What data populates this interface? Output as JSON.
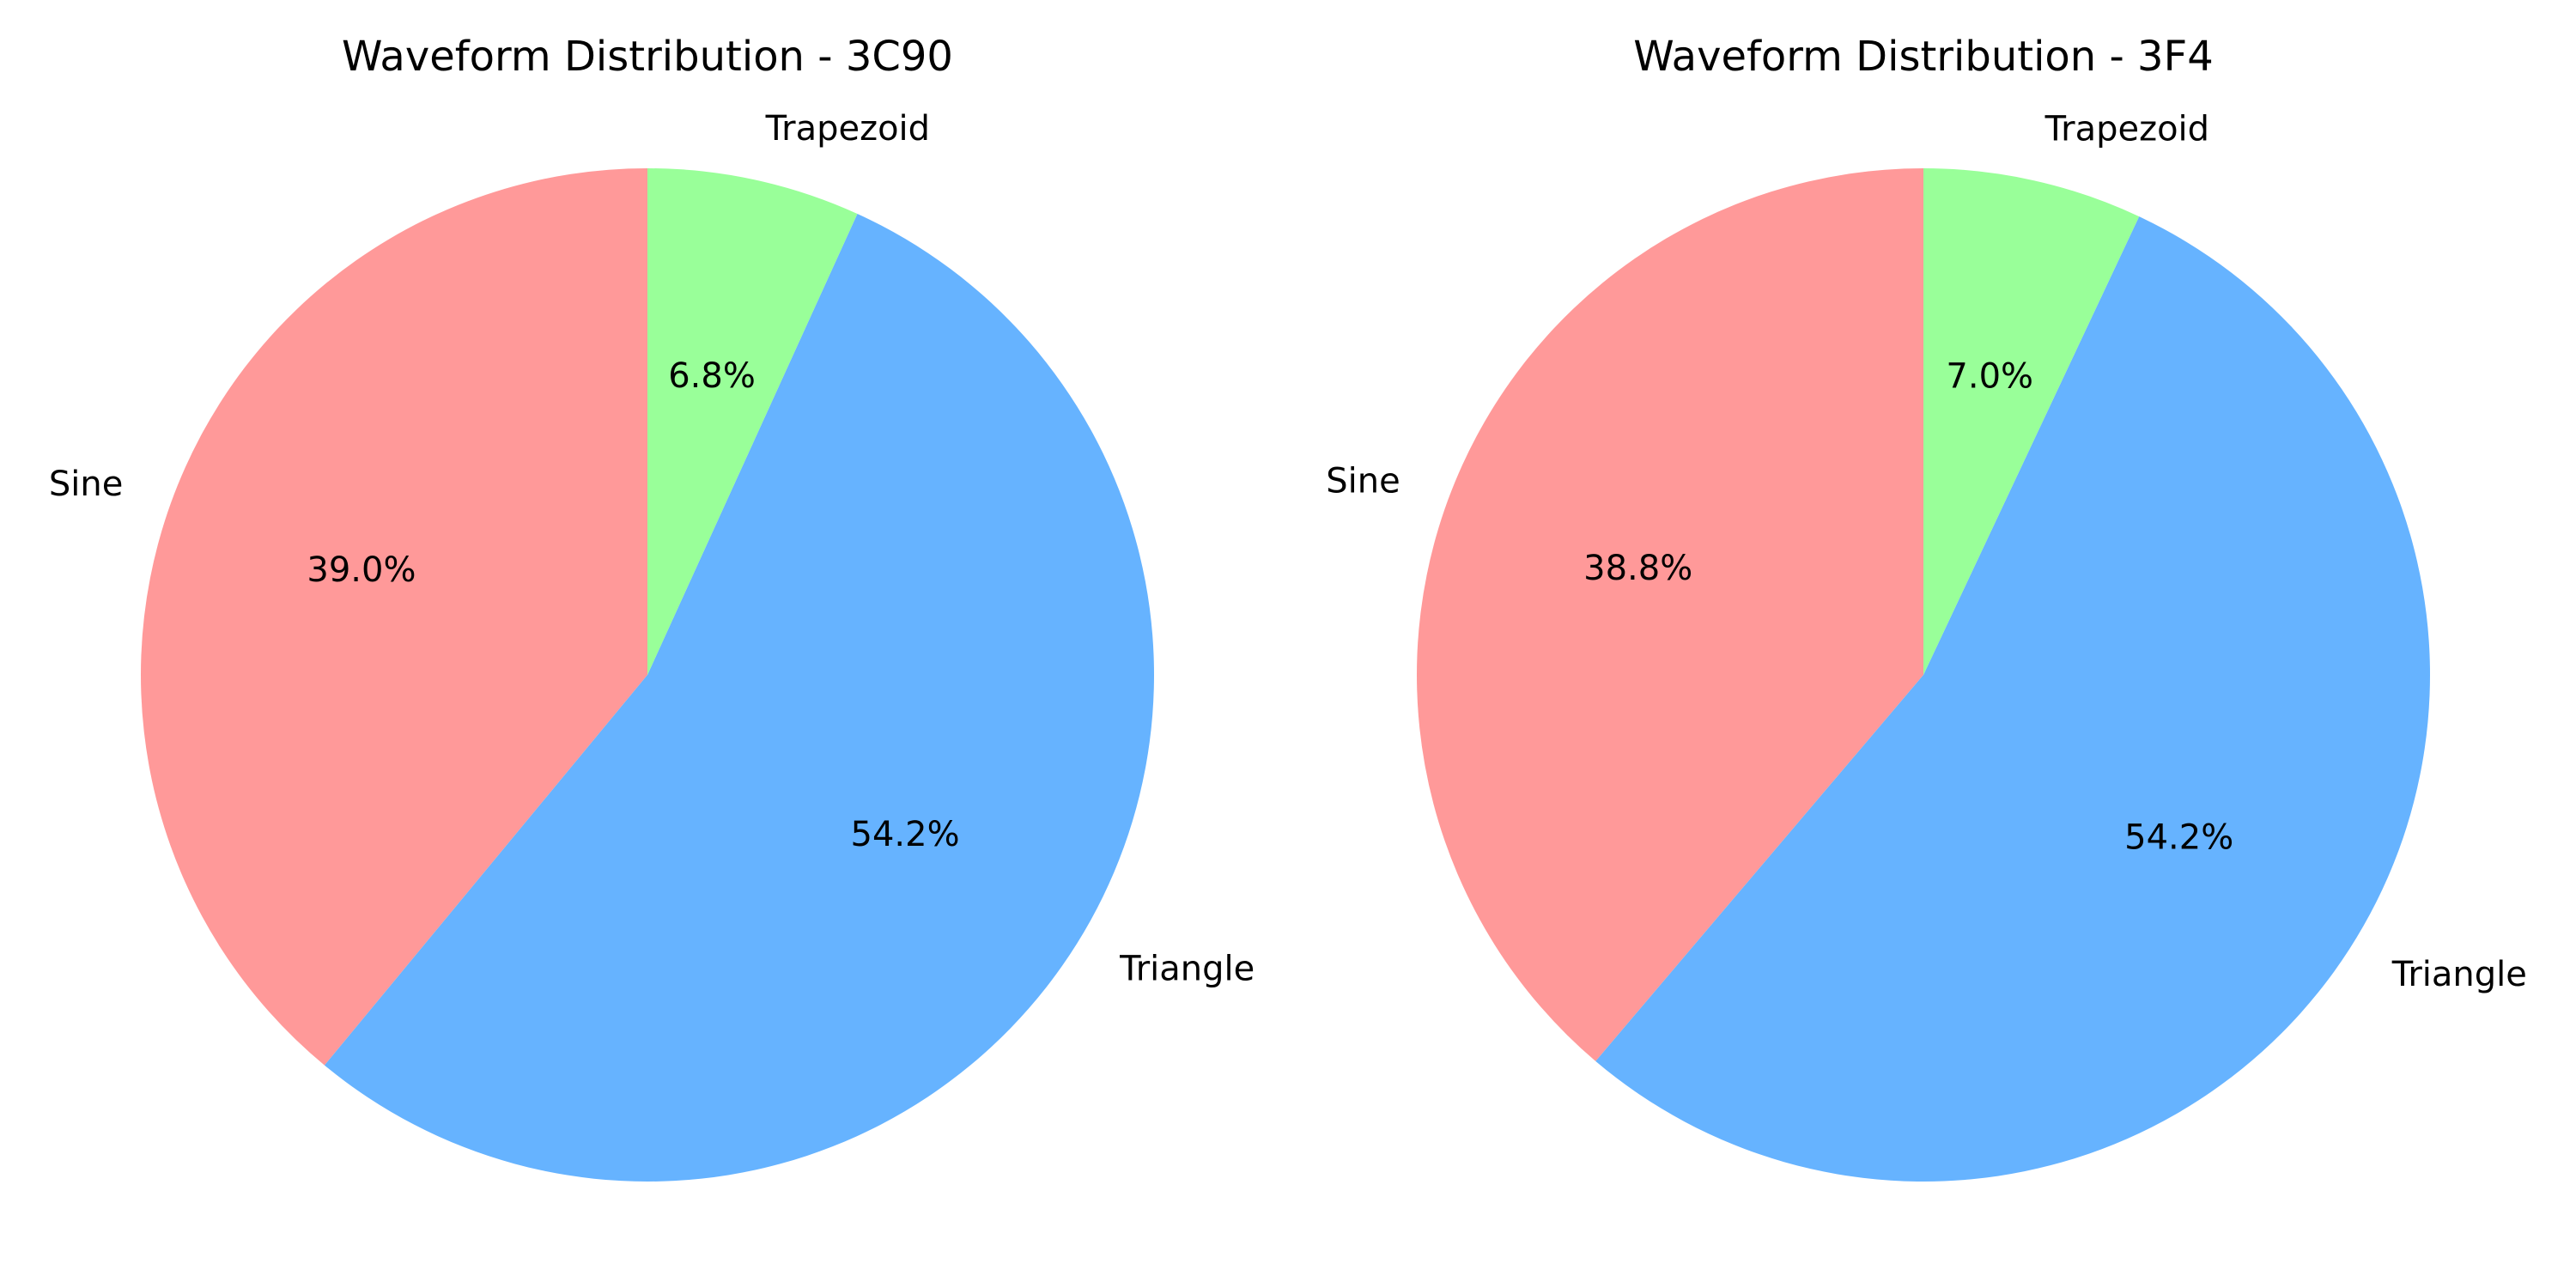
{
  "chart_data": [
    {
      "type": "pie",
      "title": "Waveform Distribution - 3C90",
      "labels": [
        "Sine",
        "Triangle",
        "Trapezoid"
      ],
      "values": [
        39.0,
        54.2,
        6.8
      ],
      "pct_labels": [
        "39.0%",
        "54.2%",
        "6.8%"
      ],
      "colors": [
        "#ff9999",
        "#66b3ff",
        "#99ff99"
      ],
      "start_angle_deg": 90,
      "direction": "counterclockwise"
    },
    {
      "type": "pie",
      "title": "Waveform Distribution - 3F4",
      "labels": [
        "Sine",
        "Triangle",
        "Trapezoid"
      ],
      "values": [
        38.8,
        54.2,
        7.0
      ],
      "pct_labels": [
        "38.8%",
        "54.2%",
        "7.0%"
      ],
      "colors": [
        "#ff9999",
        "#66b3ff",
        "#99ff99"
      ],
      "start_angle_deg": 90,
      "direction": "counterclockwise"
    }
  ]
}
